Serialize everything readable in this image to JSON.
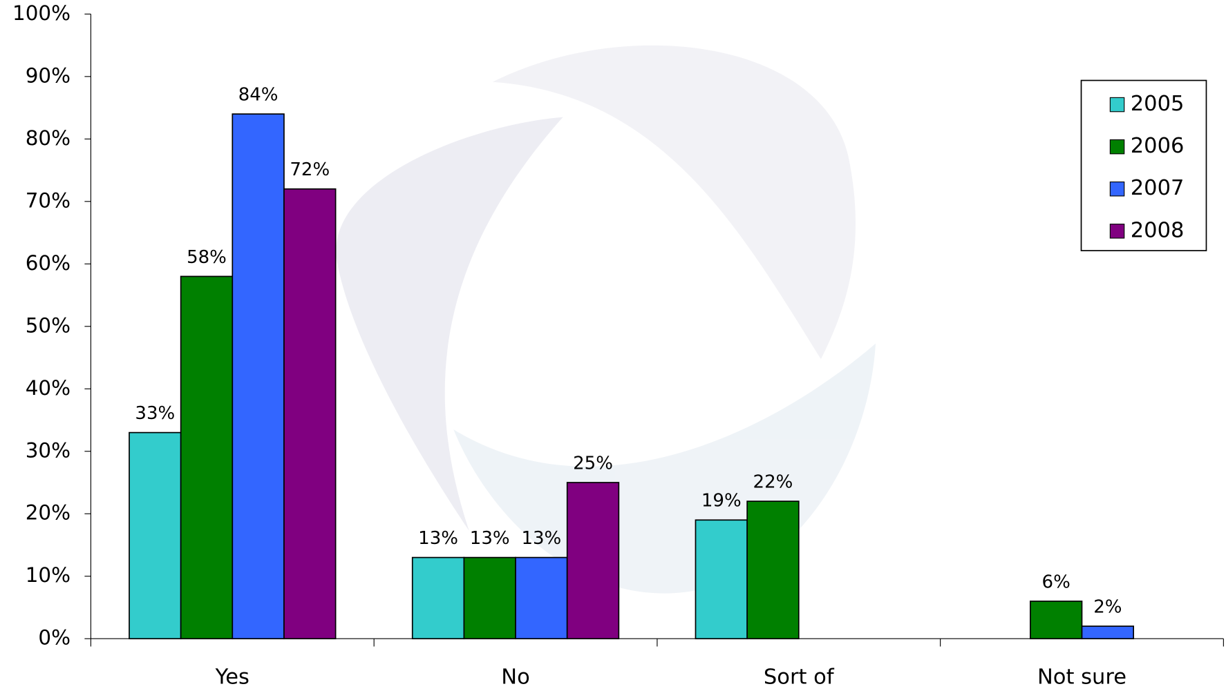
{
  "chart_data": {
    "type": "bar",
    "categories": [
      "Yes",
      "No",
      "Sort of",
      "Not sure"
    ],
    "series": [
      {
        "name": "2005",
        "color": "#33cccc",
        "values": [
          33,
          13,
          19,
          null
        ],
        "value_labels": [
          "33%",
          "13%",
          "19%",
          null
        ]
      },
      {
        "name": "2006",
        "color": "#008000",
        "values": [
          58,
          13,
          22,
          6
        ],
        "value_labels": [
          "58%",
          "13%",
          "22%",
          "6%"
        ]
      },
      {
        "name": "2007",
        "color": "#3366ff",
        "values": [
          84,
          13,
          null,
          2
        ],
        "value_labels": [
          "84%",
          "13%",
          null,
          "2%"
        ]
      },
      {
        "name": "2008",
        "color": "#800080",
        "values": [
          72,
          25,
          null,
          null
        ],
        "value_labels": [
          "72%",
          "25%",
          null,
          null
        ]
      }
    ],
    "ylim": [
      0,
      100
    ],
    "yticks": [
      {
        "value": 0,
        "label": "0%"
      },
      {
        "value": 10,
        "label": "10%"
      },
      {
        "value": 20,
        "label": "20%"
      },
      {
        "value": 30,
        "label": "30%"
      },
      {
        "value": 40,
        "label": "40%"
      },
      {
        "value": 50,
        "label": "50%"
      },
      {
        "value": 60,
        "label": "60%"
      },
      {
        "value": 70,
        "label": "70%"
      },
      {
        "value": 80,
        "label": "80%"
      },
      {
        "value": 90,
        "label": "90%"
      },
      {
        "value": 100,
        "label": "100%"
      }
    ],
    "grid": false,
    "legend": "upper-right"
  }
}
